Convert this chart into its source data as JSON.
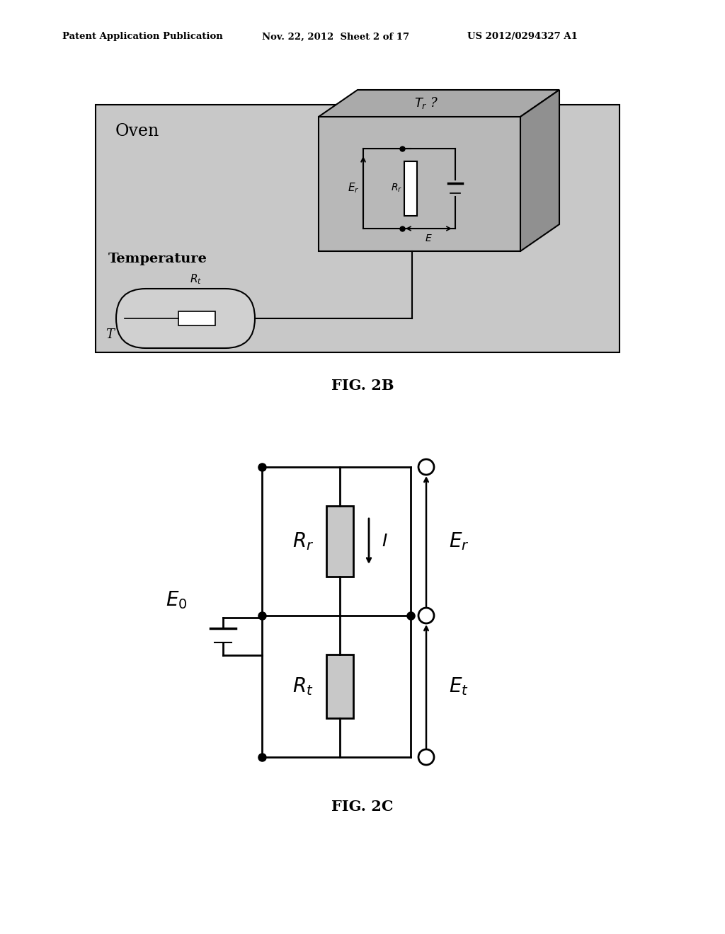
{
  "bg_color": "#ffffff",
  "header_text": "Patent Application Publication",
  "header_date": "Nov. 22, 2012  Sheet 2 of 17",
  "header_patent": "US 2012/0294327 A1",
  "fig2b_label": "FIG. 2B",
  "fig2c_label": "FIG. 2C",
  "oven_label": "Oven",
  "temperature_label": "Temperature",
  "T_label": "T",
  "oven_bg": "#cccccc",
  "box_front_bg": "#bbbbbb",
  "box_top_bg": "#aaaaaa",
  "box_right_bg": "#999999",
  "probe_bg": "#cccccc"
}
